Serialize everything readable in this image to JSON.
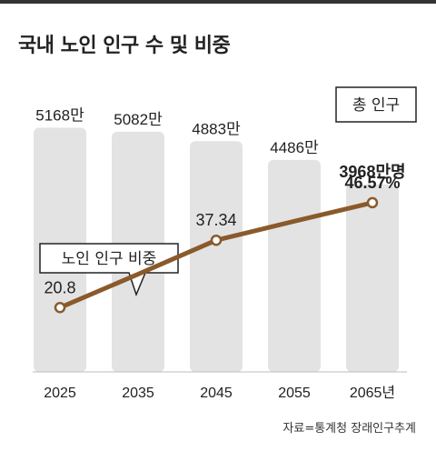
{
  "title": "국내 노인 인구 수 및 비중",
  "source": "자료=통계청 장래인구추계",
  "legend_population": "총 인구",
  "legend_ratio": "노인 인구 비중",
  "colors": {
    "bar": "#e3e3e3",
    "line": "#8a5a2b",
    "marker_fill": "#ffffff"
  },
  "chart_data": {
    "type": "bar",
    "categories": [
      "2025",
      "2035",
      "2045",
      "2055",
      "2065년"
    ],
    "series": [
      {
        "name": "총 인구",
        "type": "bar",
        "values": [
          5168,
          5082,
          4883,
          4486,
          3968
        ],
        "labels": [
          "5168만",
          "5082만",
          "4883만",
          "4486만",
          "3968만명"
        ]
      },
      {
        "name": "노인 인구 비중",
        "type": "line",
        "values": [
          20.8,
          29.0,
          37.34,
          42.0,
          46.57
        ],
        "labels": [
          "20.8",
          "",
          "37.34",
          "",
          "46.57%"
        ]
      }
    ],
    "bar_ylim": [
      0,
      5600
    ],
    "line_ylim": [
      5,
      70
    ],
    "grid": false
  }
}
